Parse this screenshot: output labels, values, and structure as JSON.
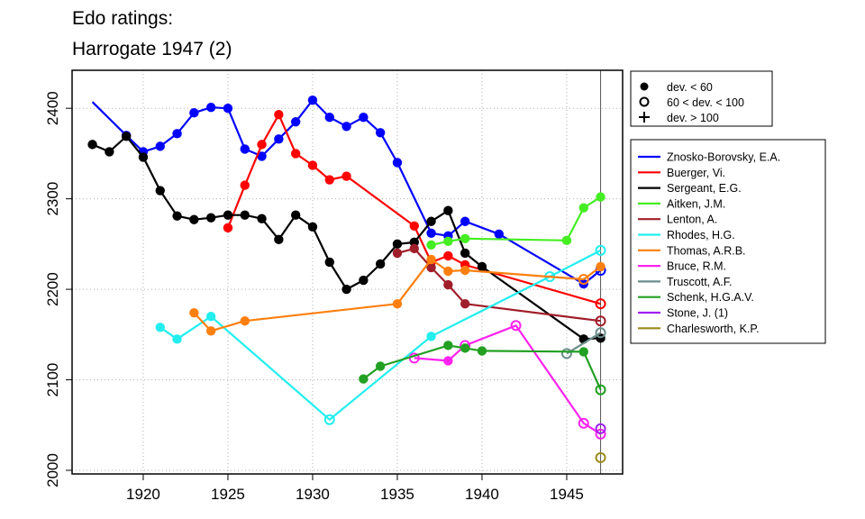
{
  "chart_data": {
    "type": "line",
    "title_line1": "Edo ratings:",
    "title_line2": "Harrogate 1947 (2)",
    "xlabel": "",
    "ylabel": "",
    "xlim": [
      1915.8,
      1948.3
    ],
    "ylim": [
      1996,
      2442
    ],
    "x_ticks": [
      1920,
      1925,
      1930,
      1935,
      1940,
      1945
    ],
    "y_ticks": [
      2000,
      2100,
      2200,
      2300,
      2400
    ],
    "grid": true,
    "vline_x": 1947,
    "dev_legend": [
      {
        "symbol": "filled-circle",
        "label": "dev. < 60"
      },
      {
        "symbol": "open-circle",
        "label": "60 < dev. < 100"
      },
      {
        "symbol": "plus",
        "label": "dev. > 100"
      }
    ],
    "series": [
      {
        "name": "Znosko-Borovsky, E.A.",
        "color": "#0000ff",
        "points": [
          {
            "x": 1917,
            "y": 2407,
            "m": "none"
          },
          {
            "x": 1919,
            "y": 2370,
            "m": "filled"
          },
          {
            "x": 1920,
            "y": 2352,
            "m": "filled"
          },
          {
            "x": 1921,
            "y": 2358,
            "m": "filled"
          },
          {
            "x": 1922,
            "y": 2372,
            "m": "filled"
          },
          {
            "x": 1923,
            "y": 2395,
            "m": "filled"
          },
          {
            "x": 1924,
            "y": 2401,
            "m": "filled"
          },
          {
            "x": 1925,
            "y": 2400,
            "m": "filled"
          },
          {
            "x": 1926,
            "y": 2355,
            "m": "filled"
          },
          {
            "x": 1927,
            "y": 2347,
            "m": "filled"
          },
          {
            "x": 1928,
            "y": 2366,
            "m": "filled"
          },
          {
            "x": 1929,
            "y": 2385,
            "m": "filled"
          },
          {
            "x": 1930,
            "y": 2409,
            "m": "filled"
          },
          {
            "x": 1931,
            "y": 2390,
            "m": "filled"
          },
          {
            "x": 1932,
            "y": 2380,
            "m": "filled"
          },
          {
            "x": 1933,
            "y": 2390,
            "m": "filled"
          },
          {
            "x": 1934,
            "y": 2373,
            "m": "filled"
          },
          {
            "x": 1935,
            "y": 2340,
            "m": "filled"
          },
          {
            "x": 1937,
            "y": 2262,
            "m": "filled"
          },
          {
            "x": 1938,
            "y": 2259,
            "m": "filled"
          },
          {
            "x": 1939,
            "y": 2275,
            "m": "filled"
          },
          {
            "x": 1941,
            "y": 2261,
            "m": "filled"
          },
          {
            "x": 1946,
            "y": 2206,
            "m": "filled"
          },
          {
            "x": 1947,
            "y": 2221,
            "m": "open"
          }
        ]
      },
      {
        "name": "Buerger, Vi.",
        "color": "#ff0000",
        "points": [
          {
            "x": 1925,
            "y": 2268,
            "m": "filled"
          },
          {
            "x": 1926,
            "y": 2315,
            "m": "filled"
          },
          {
            "x": 1927,
            "y": 2360,
            "m": "filled"
          },
          {
            "x": 1928,
            "y": 2393,
            "m": "filled"
          },
          {
            "x": 1929,
            "y": 2350,
            "m": "filled"
          },
          {
            "x": 1930,
            "y": 2337,
            "m": "filled"
          },
          {
            "x": 1931,
            "y": 2321,
            "m": "filled"
          },
          {
            "x": 1932,
            "y": 2325,
            "m": "filled"
          },
          {
            "x": 1936,
            "y": 2270,
            "m": "filled"
          },
          {
            "x": 1937,
            "y": 2230,
            "m": "filled"
          },
          {
            "x": 1938,
            "y": 2237,
            "m": "filled"
          },
          {
            "x": 1939,
            "y": 2227,
            "m": "filled"
          },
          {
            "x": 1947,
            "y": 2184,
            "m": "open"
          }
        ]
      },
      {
        "name": "Sergeant, E.G.",
        "color": "#000000",
        "points": [
          {
            "x": 1917,
            "y": 2360,
            "m": "filled"
          },
          {
            "x": 1918,
            "y": 2352,
            "m": "filled"
          },
          {
            "x": 1919,
            "y": 2369,
            "m": "filled"
          },
          {
            "x": 1920,
            "y": 2346,
            "m": "filled"
          },
          {
            "x": 1921,
            "y": 2309,
            "m": "filled"
          },
          {
            "x": 1922,
            "y": 2281,
            "m": "filled"
          },
          {
            "x": 1923,
            "y": 2277,
            "m": "filled"
          },
          {
            "x": 1924,
            "y": 2279,
            "m": "filled"
          },
          {
            "x": 1925,
            "y": 2282,
            "m": "filled"
          },
          {
            "x": 1926,
            "y": 2282,
            "m": "filled"
          },
          {
            "x": 1927,
            "y": 2278,
            "m": "filled"
          },
          {
            "x": 1928,
            "y": 2255,
            "m": "filled"
          },
          {
            "x": 1929,
            "y": 2282,
            "m": "filled"
          },
          {
            "x": 1930,
            "y": 2269,
            "m": "filled"
          },
          {
            "x": 1931,
            "y": 2230,
            "m": "filled"
          },
          {
            "x": 1932,
            "y": 2200,
            "m": "filled"
          },
          {
            "x": 1933,
            "y": 2210,
            "m": "filled"
          },
          {
            "x": 1934,
            "y": 2228,
            "m": "filled"
          },
          {
            "x": 1935,
            "y": 2250,
            "m": "filled"
          },
          {
            "x": 1936,
            "y": 2252,
            "m": "filled"
          },
          {
            "x": 1937,
            "y": 2275,
            "m": "filled"
          },
          {
            "x": 1938,
            "y": 2287,
            "m": "filled"
          },
          {
            "x": 1939,
            "y": 2240,
            "m": "filled"
          },
          {
            "x": 1940,
            "y": 2225,
            "m": "filled"
          },
          {
            "x": 1946,
            "y": 2145,
            "m": "filled"
          },
          {
            "x": 1947,
            "y": 2146,
            "m": "filled"
          }
        ]
      },
      {
        "name": "Aitken, J.M.",
        "color": "#44ee22",
        "points": [
          {
            "x": 1937,
            "y": 2249,
            "m": "filled"
          },
          {
            "x": 1938,
            "y": 2253,
            "m": "filled"
          },
          {
            "x": 1939,
            "y": 2256,
            "m": "filled"
          },
          {
            "x": 1945,
            "y": 2254,
            "m": "filled"
          },
          {
            "x": 1946,
            "y": 2290,
            "m": "filled"
          },
          {
            "x": 1947,
            "y": 2302,
            "m": "filled"
          }
        ]
      },
      {
        "name": "Lenton, A.",
        "color": "#a01d2a",
        "points": [
          {
            "x": 1935,
            "y": 2240,
            "m": "filled"
          },
          {
            "x": 1936,
            "y": 2245,
            "m": "filled"
          },
          {
            "x": 1937,
            "y": 2224,
            "m": "filled"
          },
          {
            "x": 1938,
            "y": 2205,
            "m": "filled"
          },
          {
            "x": 1939,
            "y": 2184,
            "m": "filled"
          },
          {
            "x": 1947,
            "y": 2165,
            "m": "open"
          }
        ]
      },
      {
        "name": "Rhodes, H.G.",
        "color": "#22eeee",
        "points": [
          {
            "x": 1921,
            "y": 2158,
            "m": "filled"
          },
          {
            "x": 1922,
            "y": 2145,
            "m": "filled"
          },
          {
            "x": 1924,
            "y": 2170,
            "m": "filled"
          },
          {
            "x": 1931,
            "y": 2056,
            "m": "open"
          },
          {
            "x": 1937,
            "y": 2148,
            "m": "filled"
          },
          {
            "x": 1944,
            "y": 2214,
            "m": "open"
          },
          {
            "x": 1947,
            "y": 2243,
            "m": "open"
          }
        ]
      },
      {
        "name": "Thomas, A.R.B.",
        "color": "#ff7f0e",
        "points": [
          {
            "x": 1923,
            "y": 2174,
            "m": "filled"
          },
          {
            "x": 1924,
            "y": 2154,
            "m": "filled"
          },
          {
            "x": 1926,
            "y": 2165,
            "m": "filled"
          },
          {
            "x": 1935,
            "y": 2184,
            "m": "filled"
          },
          {
            "x": 1937,
            "y": 2233,
            "m": "filled"
          },
          {
            "x": 1938,
            "y": 2220,
            "m": "filled"
          },
          {
            "x": 1939,
            "y": 2221,
            "m": "filled"
          },
          {
            "x": 1946,
            "y": 2211,
            "m": "open"
          },
          {
            "x": 1947,
            "y": 2225,
            "m": "filled"
          }
        ]
      },
      {
        "name": "Bruce, R.M.",
        "color": "#ff22ee",
        "points": [
          {
            "x": 1936,
            "y": 2124,
            "m": "open"
          },
          {
            "x": 1938,
            "y": 2121,
            "m": "filled"
          },
          {
            "x": 1939,
            "y": 2138,
            "m": "open"
          },
          {
            "x": 1942,
            "y": 2160,
            "m": "open"
          },
          {
            "x": 1946,
            "y": 2052,
            "m": "open"
          },
          {
            "x": 1947,
            "y": 2040,
            "m": "open"
          }
        ]
      },
      {
        "name": "Truscott, A.F.",
        "color": "#6b8e8a",
        "points": [
          {
            "x": 1945,
            "y": 2129,
            "m": "open"
          },
          {
            "x": 1947,
            "y": 2152,
            "m": "open"
          }
        ]
      },
      {
        "name": "Schenk, H.G.A.V.",
        "color": "#22a022",
        "points": [
          {
            "x": 1933,
            "y": 2101,
            "m": "filled"
          },
          {
            "x": 1934,
            "y": 2115,
            "m": "filled"
          },
          {
            "x": 1938,
            "y": 2138,
            "m": "filled"
          },
          {
            "x": 1939,
            "y": 2135,
            "m": "filled"
          },
          {
            "x": 1940,
            "y": 2132,
            "m": "filled"
          },
          {
            "x": 1946,
            "y": 2131,
            "m": "filled"
          },
          {
            "x": 1947,
            "y": 2089,
            "m": "open"
          }
        ]
      },
      {
        "name": "Stone, J. (1)",
        "color": "#a020f0",
        "points": [
          {
            "x": 1947,
            "y": 2046,
            "m": "open"
          }
        ]
      },
      {
        "name": "Charlesworth, K.P.",
        "color": "#9a8c1a",
        "points": [
          {
            "x": 1947,
            "y": 2014,
            "m": "open"
          }
        ]
      }
    ]
  }
}
